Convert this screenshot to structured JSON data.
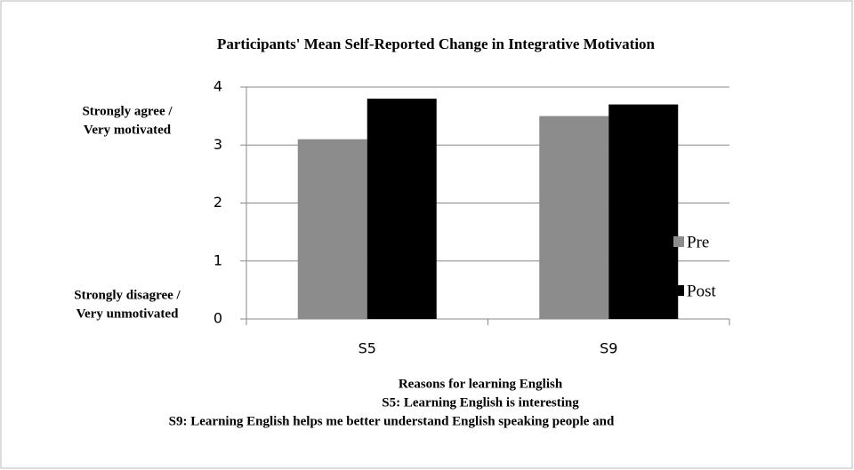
{
  "chart_data": {
    "type": "bar",
    "title": "Participants' Mean Self-Reported Change in Integrative Motivation",
    "categories": [
      "S5",
      "S9"
    ],
    "series": [
      {
        "name": "Pre",
        "color": "#8c8c8c",
        "values": [
          3.1,
          3.5
        ]
      },
      {
        "name": "Post",
        "color": "#000000",
        "values": [
          3.8,
          3.7
        ]
      }
    ],
    "ylim": [
      0,
      4
    ],
    "yticks": [
      0,
      1,
      2,
      3,
      4
    ],
    "grid": true,
    "legend": "right",
    "y_annotations": [
      [
        "Strongly agree /",
        "Very motivated"
      ],
      [
        "Strongly disagree /",
        "Very unmotivated"
      ]
    ],
    "xlabel": [
      "Reasons for learning English",
      "S5: Learning English is interesting",
      "S9: Learning English helps me better understand English speaking people and"
    ]
  }
}
